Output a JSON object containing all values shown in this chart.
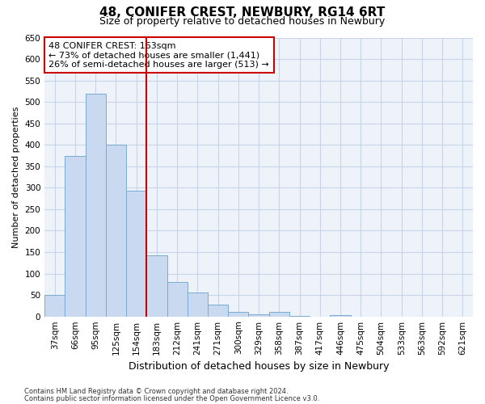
{
  "title1": "48, CONIFER CREST, NEWBURY, RG14 6RT",
  "title2": "Size of property relative to detached houses in Newbury",
  "xlabel": "Distribution of detached houses by size in Newbury",
  "ylabel": "Number of detached properties",
  "categories": [
    "37sqm",
    "66sqm",
    "95sqm",
    "125sqm",
    "154sqm",
    "183sqm",
    "212sqm",
    "241sqm",
    "271sqm",
    "300sqm",
    "329sqm",
    "358sqm",
    "387sqm",
    "417sqm",
    "446sqm",
    "475sqm",
    "504sqm",
    "533sqm",
    "563sqm",
    "592sqm",
    "621sqm"
  ],
  "values": [
    50,
    375,
    520,
    400,
    293,
    143,
    80,
    55,
    28,
    11,
    5,
    11,
    2,
    0,
    4,
    0,
    0,
    0,
    0,
    0,
    0
  ],
  "bar_color": "#c9d9f0",
  "bar_edge_color": "#7aaad0",
  "vline_x": 4.5,
  "vline_color": "#cc0000",
  "annotation_text": "48 CONIFER CREST: 163sqm\n← 73% of detached houses are smaller (1,441)\n26% of semi-detached houses are larger (513) →",
  "annotation_box_color": "#ffffff",
  "annotation_box_edge": "#cc0000",
  "ylim": [
    0,
    650
  ],
  "yticks": [
    0,
    50,
    100,
    150,
    200,
    250,
    300,
    350,
    400,
    450,
    500,
    550,
    600,
    650
  ],
  "footnote1": "Contains HM Land Registry data © Crown copyright and database right 2024.",
  "footnote2": "Contains public sector information licensed under the Open Government Licence v3.0.",
  "bg_color": "#ffffff",
  "plot_bg_color": "#eef3fa",
  "grid_color": "#c8d4e8",
  "title1_fontsize": 11,
  "title2_fontsize": 9,
  "xlabel_fontsize": 9,
  "ylabel_fontsize": 8,
  "tick_fontsize": 7.5,
  "annotation_fontsize": 8,
  "footnote_fontsize": 6
}
